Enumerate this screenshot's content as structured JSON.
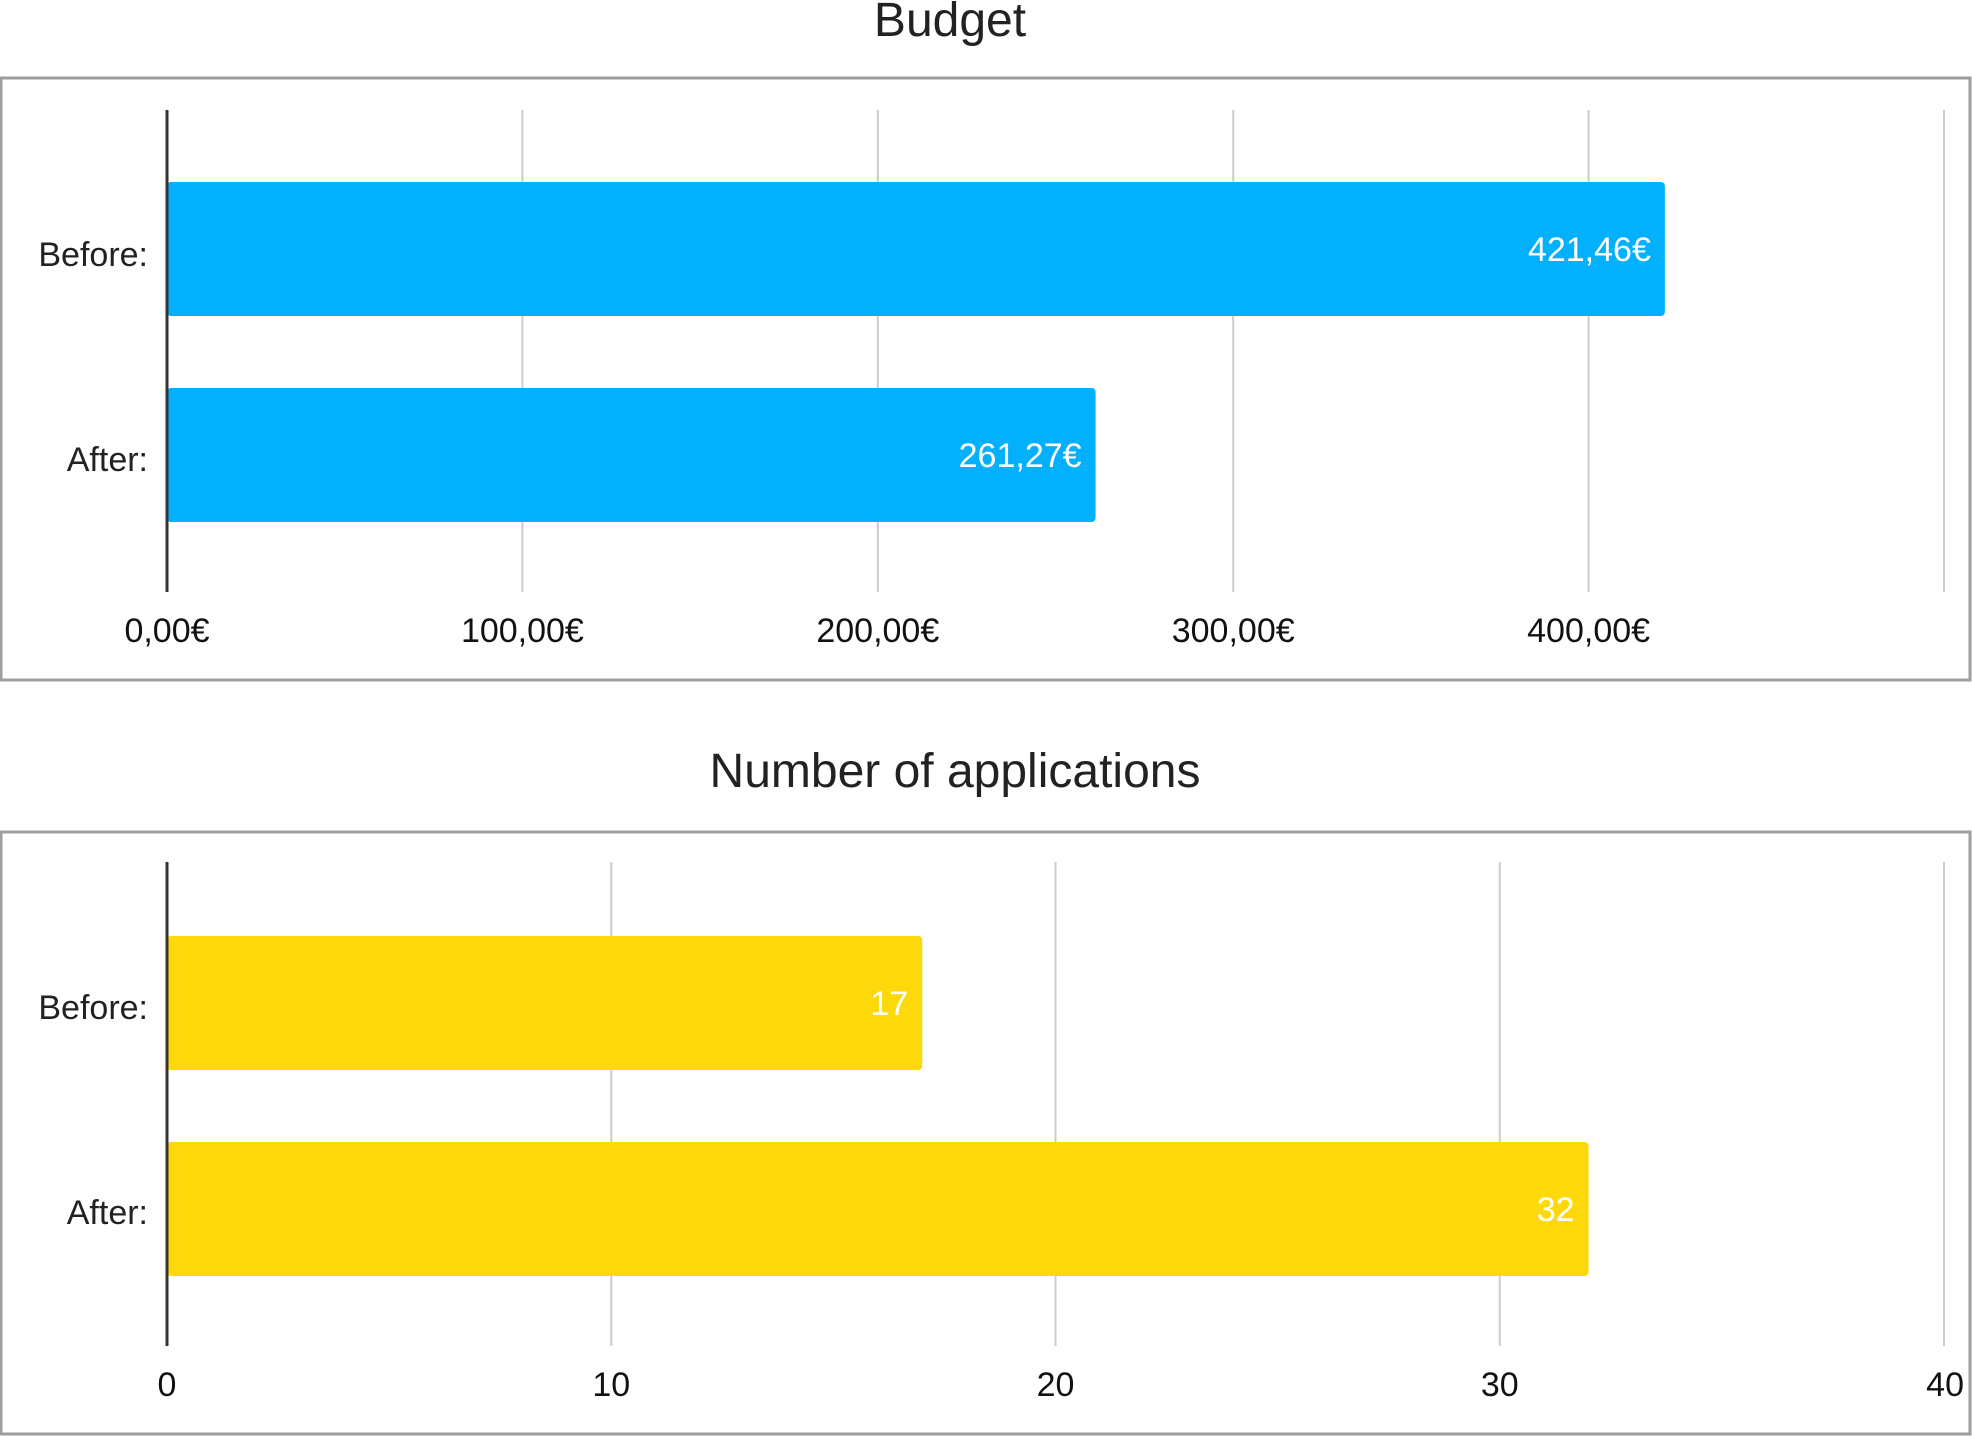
{
  "chart_data": [
    {
      "type": "bar",
      "orientation": "horizontal",
      "title": "Budget",
      "categories": [
        "Before:",
        "After:"
      ],
      "values": [
        421.46,
        261.27
      ],
      "value_labels": [
        "421,46€",
        "261,27€"
      ],
      "xlim": [
        0,
        500
      ],
      "ticks": [
        0,
        100,
        200,
        300,
        400
      ],
      "tick_labels": [
        "0,00€",
        "100,00€",
        "200,00€",
        "300,00€",
        "400,00€"
      ],
      "grid": true,
      "color": "#03b0fc"
    },
    {
      "type": "bar",
      "orientation": "horizontal",
      "title": "Number of applications",
      "categories": [
        "Before:",
        "After:"
      ],
      "values": [
        17,
        32
      ],
      "value_labels": [
        "17",
        "32"
      ],
      "xlim": [
        0,
        40
      ],
      "ticks": [
        0,
        10,
        20,
        30,
        40
      ],
      "tick_labels": [
        "0",
        "10",
        "20",
        "30",
        "40"
      ],
      "grid": true,
      "color": "#fdd80a"
    }
  ]
}
